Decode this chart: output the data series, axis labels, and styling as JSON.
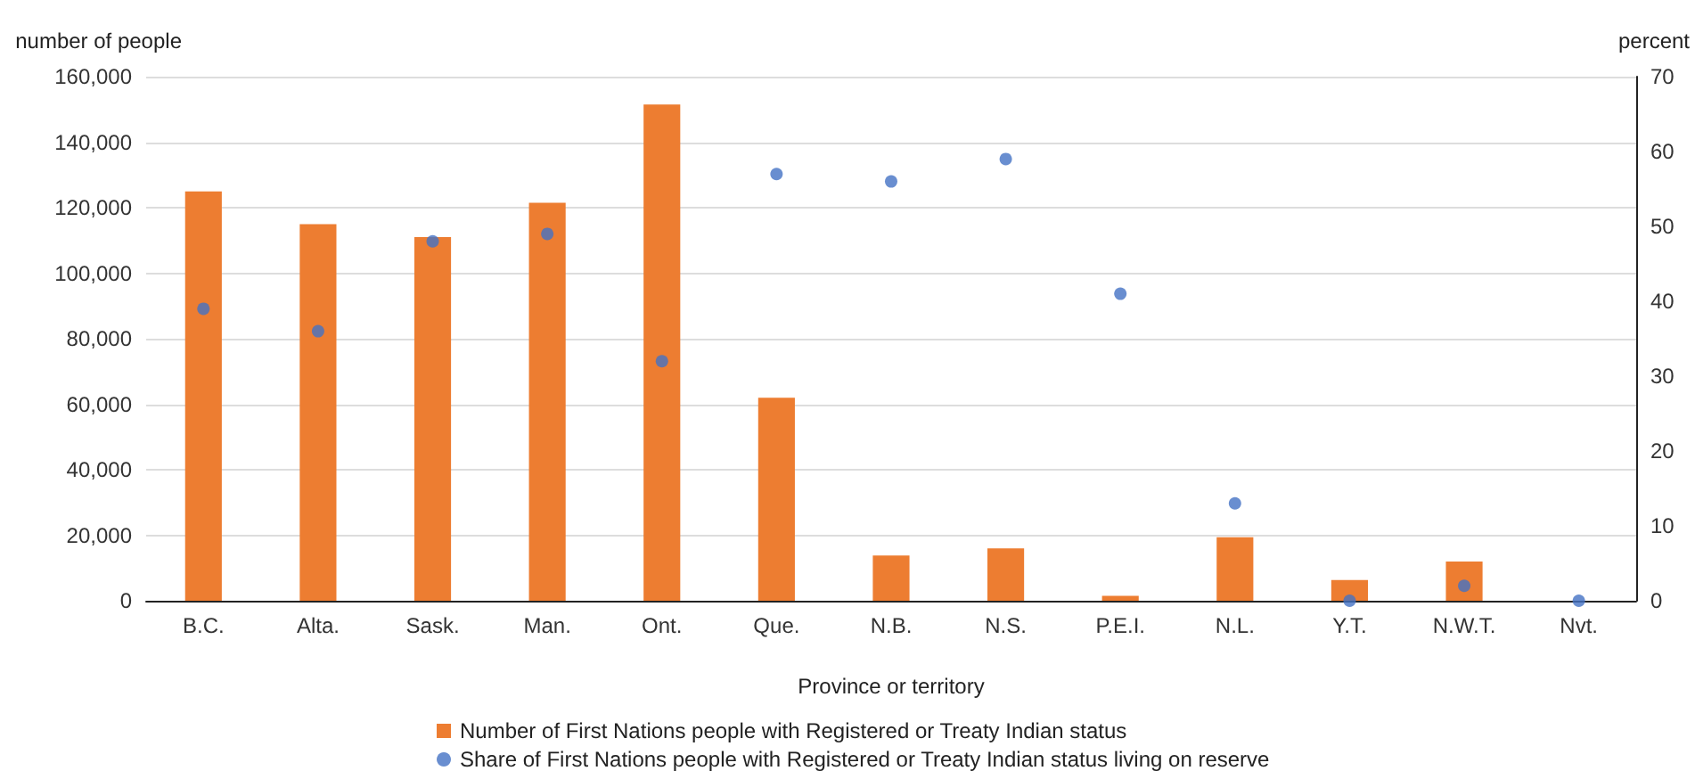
{
  "chart_data": {
    "type": "bar",
    "xlabel": "Province or territory",
    "ylabel": "number of people",
    "y2label": "percent",
    "categories": [
      "B.C.",
      "Alta.",
      "Sask.",
      "Man.",
      "Ont.",
      "Que.",
      "N.B.",
      "N.S.",
      "P.E.I.",
      "N.L.",
      "Y.T.",
      "N.W.T.",
      "Nvt."
    ],
    "series": [
      {
        "name": "Number of First Nations people with Registered or Treaty Indian status",
        "color": "#ed7d31",
        "values": [
          125000,
          115000,
          111000,
          121500,
          151500,
          62000,
          13800,
          16000,
          1500,
          19400,
          6300,
          12000,
          null
        ]
      },
      {
        "name": "Share of First Nations people with Registered or Treaty Indian status living on reserve",
        "type": "scatter",
        "color": "#4472c4",
        "axis": "y2",
        "values": [
          39,
          36,
          48,
          49,
          32,
          57,
          56,
          59,
          41,
          13,
          0,
          2,
          0
        ]
      }
    ],
    "ylim": [
      0,
      160000
    ],
    "yticks": [
      0,
      {
        "value": 20000,
        "label": "20,000"
      },
      {
        "value": 40000,
        "label": "40,000"
      },
      {
        "value": 60000,
        "label": "60,000"
      },
      {
        "value": 80000,
        "label": "80,000"
      },
      {
        "value": 100000,
        "label": "100,000"
      },
      {
        "value": 120000,
        "label": "120,000"
      },
      {
        "value": 140000,
        "label": "140,000"
      },
      {
        "value": 160000,
        "label": "160,000"
      }
    ],
    "y2lim": [
      0,
      70
    ],
    "y2ticks": [
      0,
      10,
      20,
      30,
      40,
      50,
      60,
      70
    ],
    "grid": "y",
    "legend": "bottom",
    "marker": "circle"
  }
}
